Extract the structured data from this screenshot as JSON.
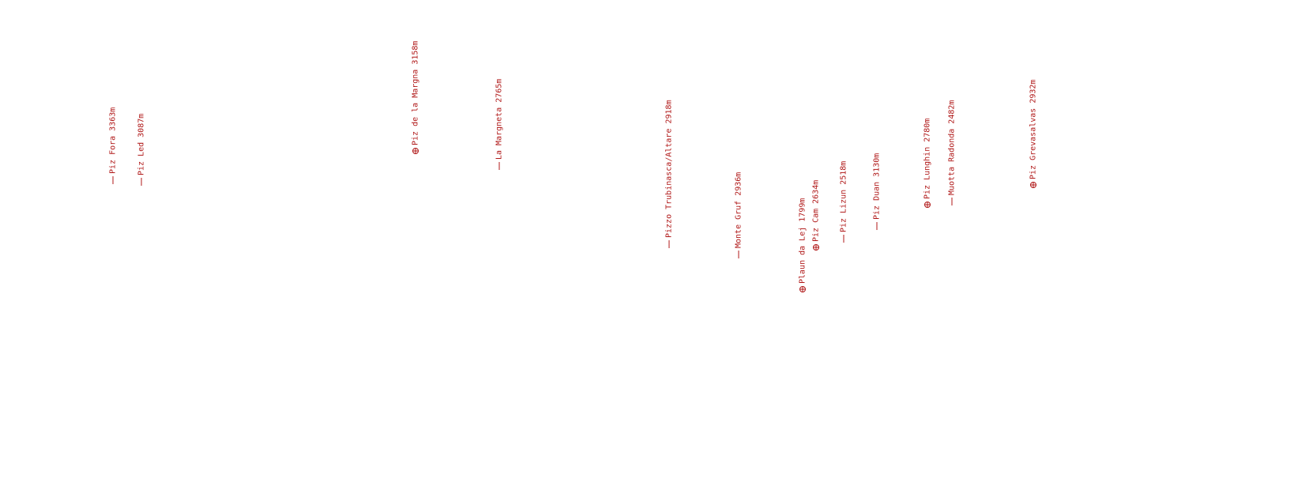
{
  "overlay": {
    "label_color": "#b01818",
    "marker_color": "#b01818",
    "summit_marker_icon": "crosshair-circle-icon",
    "tick_icon": "leader-tick-icon"
  },
  "peaks": [
    {
      "name": "Piz Fora 3363m",
      "visible_summit": false
    },
    {
      "name": "Piz Led 3087m",
      "visible_summit": false
    },
    {
      "name": "Piz de la Margna 3158m",
      "visible_summit": true
    },
    {
      "name": "La Margneta 2765m",
      "visible_summit": false
    },
    {
      "name": "Pizzo Trubinasca/Altare 2918m",
      "visible_summit": false
    },
    {
      "name": "Monte Gruf 2936m",
      "visible_summit": false
    },
    {
      "name": "Plaun da Lej 1799m",
      "visible_summit": true
    },
    {
      "name": "Piz Cam 2634m",
      "visible_summit": true
    },
    {
      "name": "Piz Lizun 2518m",
      "visible_summit": false
    },
    {
      "name": "Piz Duan 3130m",
      "visible_summit": false
    },
    {
      "name": "Piz Lunghin 2780m",
      "visible_summit": true
    },
    {
      "name": "Muotta Radonda 2482m",
      "visible_summit": false
    },
    {
      "name": "Piz Grevasalvas 2932m",
      "visible_summit": true
    }
  ]
}
